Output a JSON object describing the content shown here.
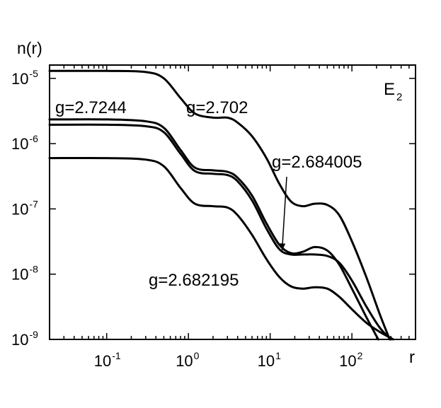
{
  "chart_data": {
    "type": "line",
    "title": "E",
    "title_subscript": "2",
    "xlabel": "r",
    "ylabel": "n(r)",
    "xscale": "log",
    "yscale": "log",
    "xlim": [
      0.02,
      600
    ],
    "ylim": [
      1e-09,
      1.6e-05
    ],
    "grid": false,
    "x_ticks": [
      {
        "value": 0.1,
        "base": "10",
        "exp": "-1"
      },
      {
        "value": 1,
        "base": "10",
        "exp": "0"
      },
      {
        "value": 10,
        "base": "10",
        "exp": "1"
      },
      {
        "value": 100,
        "base": "10",
        "exp": "2"
      }
    ],
    "y_ticks": [
      {
        "value": 1e-09,
        "base": "10",
        "exp": "-9"
      },
      {
        "value": 1e-08,
        "base": "10",
        "exp": "-8"
      },
      {
        "value": 1e-07,
        "base": "10",
        "exp": "-7"
      },
      {
        "value": 1e-06,
        "base": "10",
        "exp": "-6"
      },
      {
        "value": 1e-05,
        "base": "10",
        "exp": "-5"
      }
    ],
    "series": [
      {
        "name": "g=2.702",
        "points": [
          [
            0.02,
            1.3e-05
          ],
          [
            0.1,
            1.3e-05
          ],
          [
            0.3,
            1.25e-05
          ],
          [
            0.5,
            1e-05
          ],
          [
            0.8,
            5e-06
          ],
          [
            1.2,
            2.9e-06
          ],
          [
            2,
            2.5e-06
          ],
          [
            3,
            2.5e-06
          ],
          [
            4,
            2.1e-06
          ],
          [
            6,
            1.3e-06
          ],
          [
            9,
            6e-07
          ],
          [
            13,
            2.4e-07
          ],
          [
            18,
            1.3e-07
          ],
          [
            25,
            1.1e-07
          ],
          [
            35,
            1.2e-07
          ],
          [
            50,
            1.15e-07
          ],
          [
            70,
            8e-08
          ],
          [
            100,
            3.2e-08
          ],
          [
            150,
            9e-09
          ],
          [
            220,
            2.4e-09
          ],
          [
            290,
            1e-09
          ]
        ]
      },
      {
        "name": "g=2.7244",
        "points": [
          [
            0.02,
            2.35e-06
          ],
          [
            0.1,
            2.35e-06
          ],
          [
            0.3,
            2.2e-06
          ],
          [
            0.5,
            1.75e-06
          ],
          [
            0.8,
            8e-07
          ],
          [
            1.2,
            4.3e-07
          ],
          [
            2,
            3.9e-07
          ],
          [
            3,
            3.7e-07
          ],
          [
            4,
            3e-07
          ],
          [
            6,
            1.6e-07
          ],
          [
            9,
            6e-08
          ],
          [
            13,
            2.8e-08
          ],
          [
            18,
            2.1e-08
          ],
          [
            25,
            2.2e-08
          ],
          [
            35,
            2.6e-08
          ],
          [
            50,
            2.3e-08
          ],
          [
            70,
            1.4e-08
          ],
          [
            100,
            6e-09
          ],
          [
            150,
            2.2e-09
          ],
          [
            210,
            1e-09
          ]
        ]
      },
      {
        "name": "g=2.684005",
        "points": [
          [
            0.02,
            1.95e-06
          ],
          [
            0.1,
            1.95e-06
          ],
          [
            0.3,
            1.85e-06
          ],
          [
            0.5,
            1.5e-06
          ],
          [
            0.8,
            7e-07
          ],
          [
            1.2,
            3.8e-07
          ],
          [
            2,
            3.45e-07
          ],
          [
            3,
            3.3e-07
          ],
          [
            4,
            2.65e-07
          ],
          [
            6,
            1.35e-07
          ],
          [
            9,
            5e-08
          ],
          [
            13,
            2.4e-08
          ],
          [
            18,
            2e-08
          ],
          [
            25,
            2e-08
          ],
          [
            35,
            2e-08
          ],
          [
            50,
            1.9e-08
          ],
          [
            70,
            1.5e-08
          ],
          [
            100,
            8e-09
          ],
          [
            150,
            3.2e-09
          ],
          [
            220,
            1.5e-09
          ],
          [
            300,
            1e-09
          ]
        ]
      },
      {
        "name": "g=2.682195",
        "points": [
          [
            0.02,
            6e-07
          ],
          [
            0.1,
            6e-07
          ],
          [
            0.3,
            5.7e-07
          ],
          [
            0.5,
            4.5e-07
          ],
          [
            0.8,
            2.1e-07
          ],
          [
            1.2,
            1.2e-07
          ],
          [
            2,
            1.1e-07
          ],
          [
            3,
            1.05e-07
          ],
          [
            4,
            8e-08
          ],
          [
            6,
            4e-08
          ],
          [
            9,
            1.7e-08
          ],
          [
            13,
            9e-09
          ],
          [
            18,
            6.5e-09
          ],
          [
            25,
            6e-09
          ],
          [
            35,
            6.3e-09
          ],
          [
            50,
            6e-09
          ],
          [
            70,
            4.5e-09
          ],
          [
            100,
            2.9e-09
          ],
          [
            150,
            1.8e-09
          ],
          [
            220,
            1.3e-09
          ],
          [
            320,
            1e-09
          ]
        ]
      }
    ],
    "annotations": [
      {
        "text": "g=2.7244"
      },
      {
        "text": "g=2.702"
      },
      {
        "text": "g=2.684005",
        "arrow_to": [
          14,
          2.3e-08
        ]
      },
      {
        "text": "g=2.682195"
      }
    ]
  }
}
